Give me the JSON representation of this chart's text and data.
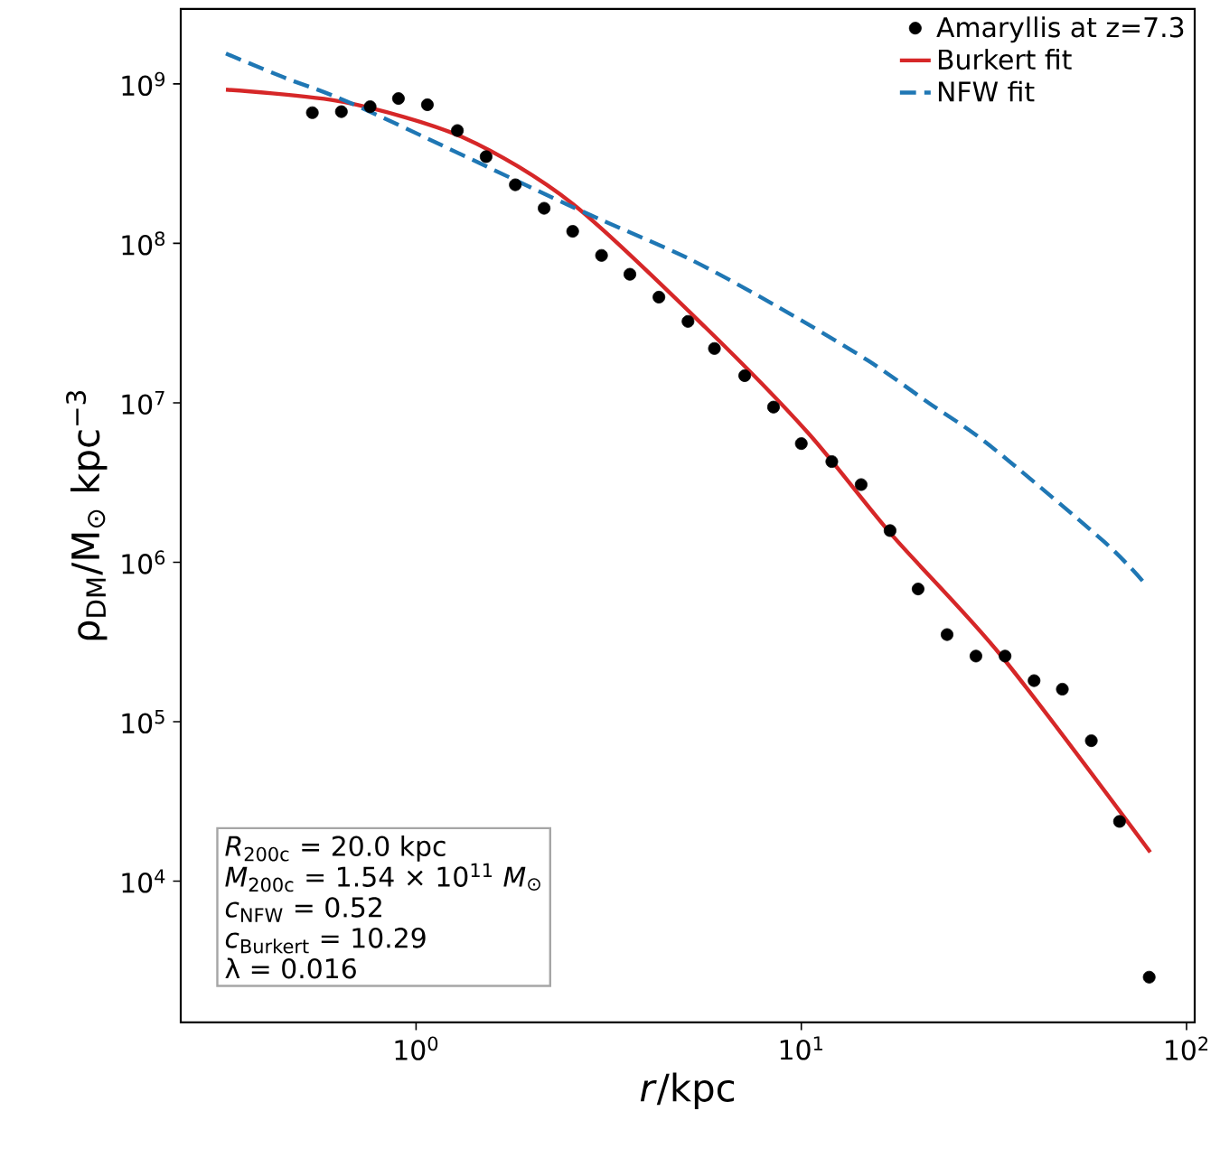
{
  "chart_data": {
    "type": "scatter",
    "xlabel": "*r*/kpc",
    "ylabel": "ρ$_{DM}$/M$_{⊙}$ kpc$^{−3}$",
    "log": "xy",
    "xlim": [
      0.245,
      105
    ],
    "ylim": [
      1300,
      2950000000.0
    ],
    "xticks": [
      {
        "value": 1,
        "label": "10$^{0}$"
      },
      {
        "value": 10,
        "label": "10$^{1}$"
      },
      {
        "value": 100,
        "label": "10$^{2}$"
      }
    ],
    "yticks": [
      {
        "value": 10000,
        "label": "10$^{4}$"
      },
      {
        "value": 100000,
        "label": "10$^{5}$"
      },
      {
        "value": 1000000,
        "label": "10$^{6}$"
      },
      {
        "value": 10000000,
        "label": "10$^{7}$"
      },
      {
        "value": 100000000,
        "label": "10$^{8}$"
      },
      {
        "value": 1000000000,
        "label": "10$^{9}$"
      }
    ],
    "legend": "top right",
    "grid": false,
    "series": [
      {
        "name": "Amaryllis at z=7.3",
        "type": "scatter",
        "marker": "circle",
        "color": "#000000",
        "x": [
          0.538,
          0.64,
          0.76,
          0.9,
          1.07,
          1.28,
          1.52,
          1.81,
          2.15,
          2.55,
          3.03,
          3.59,
          4.27,
          5.08,
          5.95,
          7.13,
          8.47,
          10.0,
          12.0,
          14.3,
          17.0,
          20.1,
          23.9,
          28.4,
          33.8,
          40.2,
          47.6,
          56.6,
          67,
          80
        ],
        "values": [
          660000000.0,
          670000000.0,
          720000000.0,
          810000000.0,
          740000000.0,
          510000000.0,
          350000000.0,
          233000000.0,
          166000000.0,
          119000000.0,
          84000000.0,
          64000000.0,
          46000000.0,
          32400000.0,
          21900000.0,
          14800000.0,
          9400000.0,
          5550000.0,
          4280000.0,
          3070000.0,
          1580000.0,
          680000.0,
          352000.0,
          258000.0,
          258000.0,
          181000.0,
          160000.0,
          76000.0,
          23700.0,
          2500
        ]
      },
      {
        "name": "Burkert fit",
        "type": "line",
        "marker": "none",
        "line_style": "solid",
        "color": "#d62728",
        "x": [
          0.321,
          0.649,
          1.33,
          2.55,
          5.64,
          10.4,
          17.2,
          33,
          80.5
        ],
        "values": [
          920000000.0,
          770000000.0,
          460000000.0,
          177000000.0,
          29700000.0,
          6500000.0,
          1480000.0,
          260000.0,
          15200.0
        ]
      },
      {
        "name": "NFW fit",
        "type": "line",
        "marker": "none",
        "line_style": "dashed",
        "color": "#1f77b4",
        "x": [
          0.321,
          0.453,
          0.72,
          2.55,
          5.06,
          8.69,
          14.9,
          21.4,
          30.7,
          60.8,
          77.4
        ],
        "values": [
          1550000000.0,
          1100000000.0,
          710000000.0,
          169000000.0,
          81000000.0,
          40000000.0,
          18400000.0,
          10000000.0,
          5450000.0,
          1360000.0,
          750000.0
        ]
      }
    ],
    "annotations": [
      "*R*$_{200c}$ = 20.0 kpc",
      "*M*$_{200c}$ = 1.54 × 10$^{11}$ *M*$_{⊙}$",
      "*c*$_{NFW}$ = 0.52",
      "*c*$_{Burkert}$ = 10.29",
      "λ = 0.016"
    ]
  }
}
